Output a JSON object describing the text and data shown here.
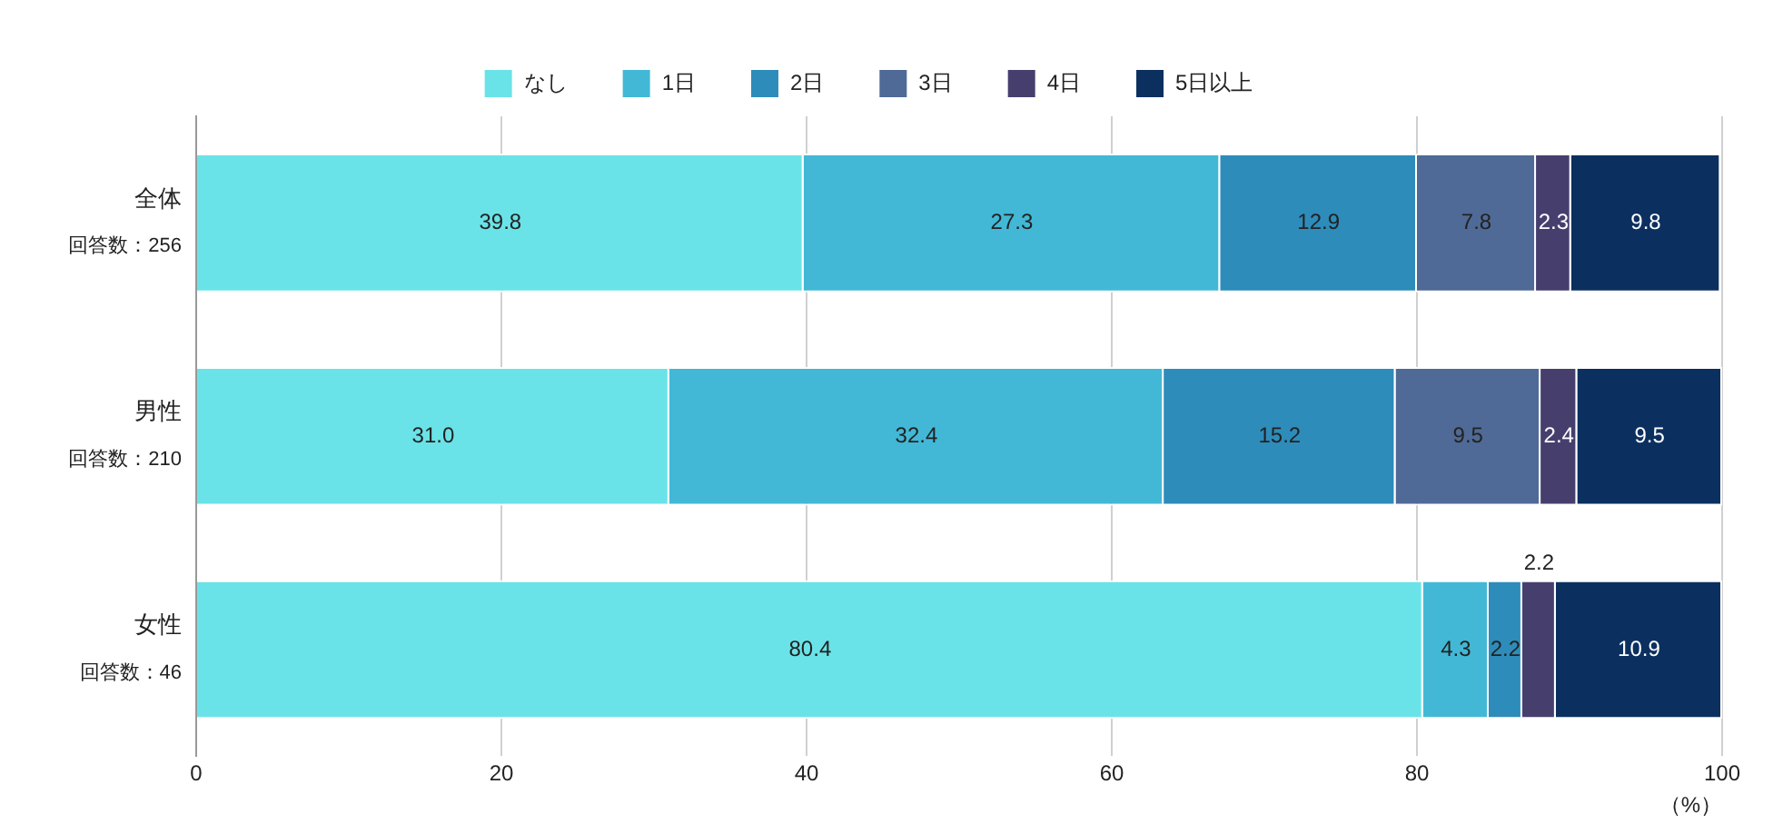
{
  "chart_data": {
    "type": "bar",
    "orientation": "horizontal",
    "stacked": true,
    "legend": "top",
    "grid": "x",
    "xlabel": "（%）",
    "categories": [
      "全体",
      "男性",
      "女性"
    ],
    "annotations": [
      "回答数：256",
      "回答数：210",
      "回答数：46"
    ],
    "xlim": [
      0,
      100
    ],
    "xticks": [
      0,
      20,
      40,
      60,
      80,
      100
    ],
    "series": [
      {
        "name": "なし",
        "color": "#6ae3e8",
        "values": [
          39.8,
          31.0,
          80.4
        ],
        "value_labels": [
          "39.8",
          "31.0",
          "80.4"
        ]
      },
      {
        "name": "1日",
        "color": "#42b8d6",
        "values": [
          27.3,
          32.4,
          4.3
        ],
        "value_labels": [
          "27.3",
          "32.4",
          "4.3"
        ]
      },
      {
        "name": "2日",
        "color": "#2e8cba",
        "values": [
          12.9,
          15.2,
          2.2
        ],
        "value_labels": [
          "12.9",
          "15.2",
          "2.2"
        ]
      },
      {
        "name": "3日",
        "color": "#4f6a96",
        "values": [
          7.8,
          9.5,
          null
        ],
        "value_labels": [
          "7.8",
          "9.5",
          null
        ]
      },
      {
        "name": "4日",
        "color": "#463f6e",
        "values": [
          2.3,
          2.4,
          2.2
        ],
        "value_labels": [
          "2.3",
          "2.4",
          "2.2"
        ]
      },
      {
        "name": "5日以上",
        "color": "#0b3060",
        "values": [
          9.8,
          9.5,
          10.9
        ],
        "value_labels": [
          "9.8",
          "9.5",
          "10.9"
        ]
      }
    ]
  }
}
